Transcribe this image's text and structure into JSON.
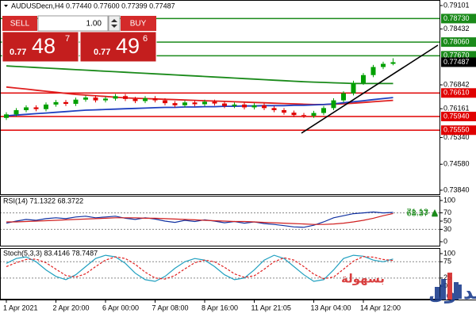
{
  "chart_data": [
    {
      "type": "candlestick",
      "title": "AUDUSDecn,H4  0.77440 0.77600 0.77399 0.77487",
      "categories": [
        "1 Apr 2021",
        null,
        null,
        null,
        null,
        "2 Apr 20:00",
        null,
        null,
        null,
        null,
        "6 Apr 00:00",
        null,
        null,
        null,
        null,
        "7 Apr 08:00",
        null,
        null,
        null,
        null,
        "8 Apr 16:00",
        null,
        null,
        null,
        null,
        "11 Apr 21:05",
        null,
        null,
        null,
        null,
        null,
        "13 Apr 04:00",
        null,
        null,
        null,
        null,
        "14 Apr 12:00",
        null,
        null,
        null
      ],
      "open": [
        0.759,
        0.76,
        0.7612,
        0.762,
        0.7615,
        0.7628,
        0.7635,
        0.763,
        0.7642,
        0.7648,
        0.764,
        0.7645,
        0.7652,
        0.7644,
        0.7638,
        0.7646,
        0.764,
        0.7632,
        0.7626,
        0.7634,
        0.7629,
        0.7636,
        0.7631,
        0.7624,
        0.7628,
        0.762,
        0.7626,
        0.7618,
        0.7612,
        0.7605,
        0.7598,
        0.7596,
        0.7604,
        0.7618,
        0.764,
        0.766,
        0.769,
        0.7712,
        0.7735,
        0.7744
      ],
      "high": [
        0.7606,
        0.7618,
        0.7626,
        0.7626,
        0.7634,
        0.7641,
        0.7641,
        0.7648,
        0.7654,
        0.7654,
        0.7651,
        0.7658,
        0.7658,
        0.765,
        0.7652,
        0.7652,
        0.7646,
        0.7638,
        0.764,
        0.764,
        0.7642,
        0.7642,
        0.7637,
        0.7634,
        0.7634,
        0.7632,
        0.7632,
        0.7624,
        0.7618,
        0.7611,
        0.7604,
        0.761,
        0.7624,
        0.7646,
        0.7666,
        0.7696,
        0.7718,
        0.7741,
        0.775,
        0.776
      ],
      "low": [
        0.7584,
        0.7594,
        0.7606,
        0.7609,
        0.7609,
        0.7622,
        0.7624,
        0.7624,
        0.7636,
        0.7634,
        0.7634,
        0.7639,
        0.7638,
        0.7632,
        0.7632,
        0.7634,
        0.7626,
        0.762,
        0.762,
        0.7623,
        0.7623,
        0.7625,
        0.7618,
        0.7618,
        0.7614,
        0.7614,
        0.7612,
        0.7606,
        0.7599,
        0.7592,
        0.759,
        0.759,
        0.7598,
        0.7612,
        0.7634,
        0.7654,
        0.7684,
        0.7706,
        0.7729,
        0.77399
      ],
      "close": [
        0.76,
        0.7612,
        0.762,
        0.7615,
        0.7628,
        0.7635,
        0.763,
        0.7642,
        0.7648,
        0.764,
        0.7645,
        0.7652,
        0.7644,
        0.7638,
        0.7646,
        0.764,
        0.7632,
        0.7626,
        0.7634,
        0.7629,
        0.7636,
        0.7631,
        0.7624,
        0.7628,
        0.762,
        0.7626,
        0.7618,
        0.7612,
        0.7605,
        0.7598,
        0.7596,
        0.7604,
        0.7618,
        0.764,
        0.766,
        0.769,
        0.7712,
        0.7735,
        0.7744,
        0.77487
      ],
      "up_color": "#00a000",
      "down_color": "#e00000",
      "moving_averages": [
        {
          "color": "#1a8a1a",
          "values": [
            0.7738,
            0.77365,
            0.7735,
            0.77335,
            0.7732,
            0.77305,
            0.7729,
            0.77275,
            0.7726,
            0.77245,
            0.7723,
            0.77215,
            0.772,
            0.77185,
            0.7717,
            0.77155,
            0.7714,
            0.77125,
            0.7711,
            0.77095,
            0.7708,
            0.77065,
            0.7705,
            0.77035,
            0.7702,
            0.77005,
            0.7699,
            0.76975,
            0.7696,
            0.76945,
            0.7693,
            0.7692,
            0.7691,
            0.769,
            0.7689,
            0.7688,
            0.7688,
            0.7688,
            0.7688,
            0.7688
          ]
        },
        {
          "color": "#e02020",
          "values": [
            0.7678,
            0.7675,
            0.7672,
            0.7669,
            0.7666,
            0.7663,
            0.766,
            0.7657,
            0.7655,
            0.7653,
            0.7651,
            0.7649,
            0.7647,
            0.7646,
            0.7645,
            0.7644,
            0.7643,
            0.7642,
            0.7641,
            0.764,
            0.7639,
            0.7638,
            0.7637,
            0.7636,
            0.7635,
            0.7634,
            0.7633,
            0.7632,
            0.7631,
            0.763,
            0.7629,
            0.7628,
            0.7628,
            0.7629,
            0.763,
            0.7632,
            0.7634,
            0.7636,
            0.7638,
            0.764
          ]
        },
        {
          "color": "#2040c0",
          "values": [
            0.7596,
            0.7598,
            0.76,
            0.7602,
            0.7604,
            0.7606,
            0.7608,
            0.761,
            0.7612,
            0.7613,
            0.7614,
            0.7615,
            0.7616,
            0.7617,
            0.7618,
            0.7619,
            0.762,
            0.762,
            0.7621,
            0.7621,
            0.7622,
            0.7622,
            0.7623,
            0.7623,
            0.7624,
            0.7624,
            0.7625,
            0.7625,
            0.7625,
            0.7626,
            0.7626,
            0.7627,
            0.7628,
            0.763,
            0.7633,
            0.7636,
            0.7639,
            0.7642,
            0.7645,
            0.7648
          ]
        }
      ],
      "ylim": [
        0.73727,
        0.79259
      ],
      "yticks": [
        0.79101,
        0.78432,
        0.76842,
        0.76161,
        {
          "value": 0.7534,
          "label": "0.75340"
        },
        {
          "value": 0.7458,
          "label": "0.74580"
        },
        {
          "value": 0.7384,
          "label": "0.73840"
        }
      ],
      "levels": [
        {
          "value": 0.7873,
          "label": "0.78730",
          "color": "#1a8a1a"
        },
        {
          "value": 0.7806,
          "label": "0.78060",
          "color": "#1a8a1a"
        },
        {
          "value": 0.7767,
          "label": "0.77670",
          "color": "#1a8a1a"
        },
        {
          "value": 0.7661,
          "label": "0.76610",
          "color": "#e00000"
        },
        {
          "value": 0.7594,
          "label": "0.75940",
          "color": "#e00000"
        },
        {
          "value": 0.7555,
          "label": "0.75550",
          "color": "#e00000"
        }
      ],
      "last_price": {
        "value": 0.77487,
        "label": "0.77487"
      }
    },
    {
      "type": "line",
      "title": "RSI(14) 71.1322 68.3722",
      "series": [
        {
          "color": "#1030a0",
          "values": [
            45,
            50,
            54,
            52,
            56,
            58,
            56,
            60,
            62,
            58,
            60,
            62,
            57,
            54,
            58,
            55,
            50,
            47,
            52,
            49,
            53,
            50,
            46,
            49,
            45,
            48,
            44,
            42,
            39,
            36,
            35,
            40,
            48,
            58,
            63,
            68,
            70,
            72,
            70,
            71.1322
          ],
          "value_labels": [
            null,
            null,
            null,
            null,
            null,
            null,
            null,
            null,
            null,
            null,
            null,
            null,
            null,
            null,
            null,
            null,
            null,
            null,
            null,
            null,
            null,
            null,
            null,
            null,
            null,
            null,
            null,
            null,
            null,
            null,
            null,
            null,
            null,
            null,
            null,
            null,
            null,
            null,
            null,
            "71.13"
          ]
        },
        {
          "color": "#d02020",
          "values": [
            48,
            48,
            49,
            50,
            51,
            52,
            53,
            54,
            55,
            56,
            57,
            58,
            58,
            58,
            57,
            57,
            56,
            55,
            54,
            53,
            52,
            51,
            50,
            49,
            49,
            48,
            47,
            46,
            45,
            44,
            43,
            42,
            42,
            43,
            45,
            48,
            52,
            57,
            63,
            68.3722
          ],
          "value_labels": [
            null,
            null,
            null,
            null,
            null,
            null,
            null,
            null,
            null,
            null,
            null,
            null,
            null,
            null,
            null,
            null,
            null,
            null,
            null,
            null,
            null,
            null,
            null,
            null,
            null,
            null,
            null,
            null,
            null,
            null,
            null,
            null,
            null,
            null,
            null,
            null,
            null,
            null,
            null,
            "68.37"
          ]
        }
      ],
      "label_color": "#1a8a1a",
      "ylim": [
        -9.6,
        111.5
      ],
      "yticks": [
        100,
        70,
        50,
        30,
        0
      ],
      "levels": [
        70,
        30
      ]
    },
    {
      "type": "line",
      "title": "Stoch(5,3,3) 83.4146 78.7487",
      "series": [
        {
          "color": "#20a0c0",
          "values": [
            70,
            85,
            90,
            75,
            50,
            30,
            20,
            35,
            60,
            85,
            95,
            90,
            70,
            40,
            20,
            15,
            30,
            55,
            75,
            85,
            80,
            60,
            35,
            20,
            25,
            50,
            80,
            95,
            85,
            60,
            35,
            15,
            20,
            50,
            85,
            95,
            92,
            80,
            75,
            83.4146
          ]
        },
        {
          "color": "#e02020",
          "dashed": true,
          "values": [
            60,
            72,
            82,
            83,
            72,
            52,
            33,
            28,
            38,
            60,
            80,
            90,
            85,
            67,
            43,
            25,
            22,
            33,
            53,
            72,
            80,
            75,
            58,
            38,
            27,
            32,
            52,
            75,
            87,
            80,
            60,
            37,
            23,
            28,
            52,
            77,
            91,
            89,
            82,
            78.7487
          ]
        }
      ],
      "ylim": [
        -41,
        117
      ],
      "yticks": [
        100,
        75,
        25,
        0
      ],
      "levels": [
        75,
        25
      ]
    }
  ],
  "trade_panel": {
    "sell": "SELL",
    "buy": "BUY",
    "volume": "1.00",
    "sell_price": {
      "prefix": "0.77",
      "big": "48",
      "sup": "7"
    },
    "buy_price": {
      "prefix": "0.77",
      "big": "49",
      "sup": "6"
    }
  },
  "watermark": {
    "word1": "التداول",
    "word2": "بسهولة"
  }
}
